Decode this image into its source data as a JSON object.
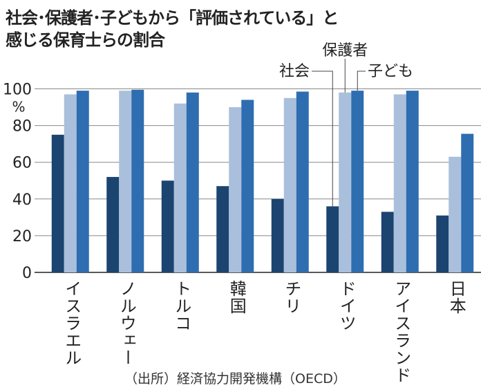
{
  "chart_data": {
    "type": "bar",
    "title": "社会･保護者･子どもから「評価されている」と感じる保育士らの割合",
    "title_lines": [
      "社会･保護者･子どもから「評価されている」と",
      "感じる保育士らの割合"
    ],
    "ylabel": "%",
    "ylim": [
      0,
      100
    ],
    "yticks": [
      "0",
      "20",
      "40",
      "60",
      "80",
      "100"
    ],
    "grid": true,
    "categories": [
      "イスラエル",
      "ノルウェー",
      "トルコ",
      "韓国",
      "チリ",
      "ドイツ",
      "アイスランド",
      "日本"
    ],
    "series": [
      {
        "name": "社会",
        "color": "#1b4470",
        "values": [
          75,
          52,
          50,
          47,
          40,
          36,
          33,
          31
        ]
      },
      {
        "name": "保護者",
        "color": "#a9bfdc",
        "values": [
          97,
          99,
          92,
          90,
          95,
          98,
          97,
          63
        ]
      },
      {
        "name": "子ども",
        "color": "#2e6db0",
        "values": [
          99,
          99.5,
          98,
          94,
          98.5,
          99,
          99,
          75.5
        ]
      }
    ],
    "legend": "annotated labels on ドイツ bars",
    "source": "（出所）経済協力開発機構（OECD）"
  }
}
